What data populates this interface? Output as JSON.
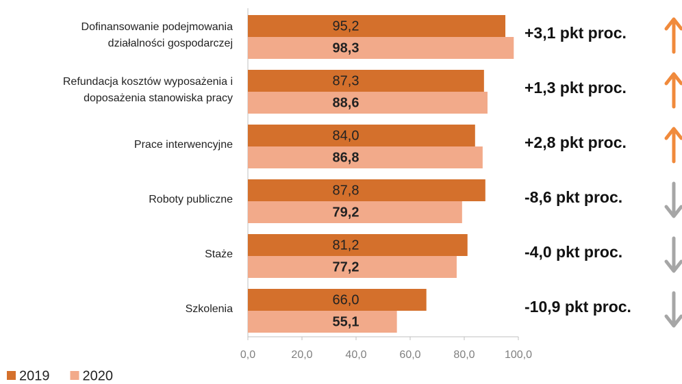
{
  "chart_data": {
    "type": "bar",
    "orientation": "horizontal",
    "categories": [
      "Dofinansowanie podejmowania\ndziałalności gospodarczej",
      "Refundacja kosztów wyposażenia i\ndoposażenia stanowiska pracy",
      "Prace interwencyjne",
      "Roboty publiczne",
      "Staże",
      "Szkolenia"
    ],
    "series": [
      {
        "name": "2019",
        "color": "#d4702c",
        "values": [
          95.2,
          87.3,
          84.0,
          87.8,
          81.2,
          66.0
        ],
        "value_labels": [
          "95,2",
          "87,3",
          "84,0",
          "87,8",
          "81,2",
          "66,0"
        ]
      },
      {
        "name": "2020",
        "color": "#f2aa8a",
        "values": [
          98.3,
          88.6,
          86.8,
          79.2,
          77.2,
          55.1
        ],
        "value_labels": [
          "98,3",
          "88,6",
          "86,8",
          "79,2",
          "77,2",
          "55,1"
        ]
      }
    ],
    "annotations": [
      "+3,1 pkt proc.",
      "+1,3 pkt proc.",
      "+2,8 pkt proc.",
      "-8,6 pkt proc.",
      "-4,0 pkt proc.",
      "-10,9 pkt proc."
    ],
    "arrow_colors": {
      "up": "#f08a3c",
      "down": "#a6a6a6"
    },
    "xlim": [
      0,
      100
    ],
    "xticks": [
      {
        "value": 0,
        "label": "0,0"
      },
      {
        "value": 20,
        "label": "20,0"
      },
      {
        "value": 40,
        "label": "40,0"
      },
      {
        "value": 60,
        "label": "60,0"
      },
      {
        "value": 80,
        "label": "80,0"
      },
      {
        "value": 100,
        "label": "100,0"
      }
    ],
    "legend": "bottom-left"
  }
}
